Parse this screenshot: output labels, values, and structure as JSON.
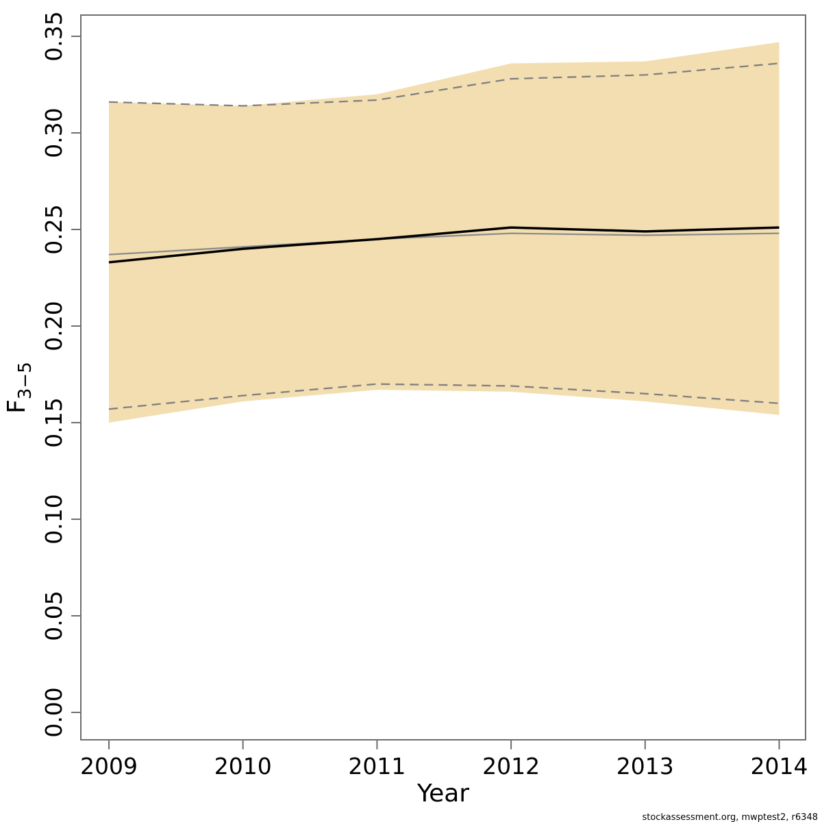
{
  "figure": {
    "footer_credit": "stockassessment.org, mwptest2, r6348"
  },
  "chart_data": {
    "type": "line",
    "title": "",
    "xlabel": "Year",
    "ylabel": {
      "base": "F",
      "subscript": "3−5",
      "overbar": true
    },
    "grid": false,
    "legend": null,
    "x": [
      2009,
      2010,
      2011,
      2012,
      2013,
      2014
    ],
    "xlim": [
      2008.79,
      2014.2
    ],
    "ylim": [
      -0.014,
      0.361
    ],
    "xticks": [
      {
        "value": 2009,
        "label": "2009"
      },
      {
        "value": 2010,
        "label": "2010"
      },
      {
        "value": 2011,
        "label": "2011"
      },
      {
        "value": 2012,
        "label": "2012"
      },
      {
        "value": 2013,
        "label": "2013"
      },
      {
        "value": 2014,
        "label": "2014"
      }
    ],
    "yticks": [
      {
        "value": 0.0,
        "label": "0.00"
      },
      {
        "value": 0.05,
        "label": "0.05"
      },
      {
        "value": 0.1,
        "label": "0.10"
      },
      {
        "value": 0.15,
        "label": "0.15"
      },
      {
        "value": 0.2,
        "label": "0.20"
      },
      {
        "value": 0.25,
        "label": "0.25"
      },
      {
        "value": 0.3,
        "label": "0.30"
      },
      {
        "value": 0.35,
        "label": "0.35"
      }
    ],
    "band": {
      "name": "confidence-band-current",
      "upper": [
        0.316,
        0.314,
        0.32,
        0.336,
        0.337,
        0.347
      ],
      "lower": [
        0.15,
        0.161,
        0.167,
        0.166,
        0.161,
        0.154
      ],
      "fill": "#F3DEB1"
    },
    "series": [
      {
        "name": "f-estimate-current",
        "values": [
          0.233,
          0.24,
          0.245,
          0.251,
          0.249,
          0.251
        ],
        "color": "#000000",
        "width": 3.5,
        "dash": null
      },
      {
        "name": "f-estimate-previous",
        "values": [
          0.237,
          0.241,
          0.245,
          0.248,
          0.247,
          0.248
        ],
        "color": "#8C8C8C",
        "width": 2.3,
        "dash": null
      },
      {
        "name": "ci-upper-previous",
        "values": [
          0.316,
          0.314,
          0.317,
          0.328,
          0.33,
          0.336
        ],
        "color": "#7F7F7F",
        "width": 2.3,
        "dash": "13 8"
      },
      {
        "name": "ci-lower-previous",
        "values": [
          0.157,
          0.164,
          0.17,
          0.169,
          0.165,
          0.16
        ],
        "color": "#7F7F7F",
        "width": 2.3,
        "dash": "13 8"
      }
    ],
    "axis_color": "#6E6E6E"
  }
}
